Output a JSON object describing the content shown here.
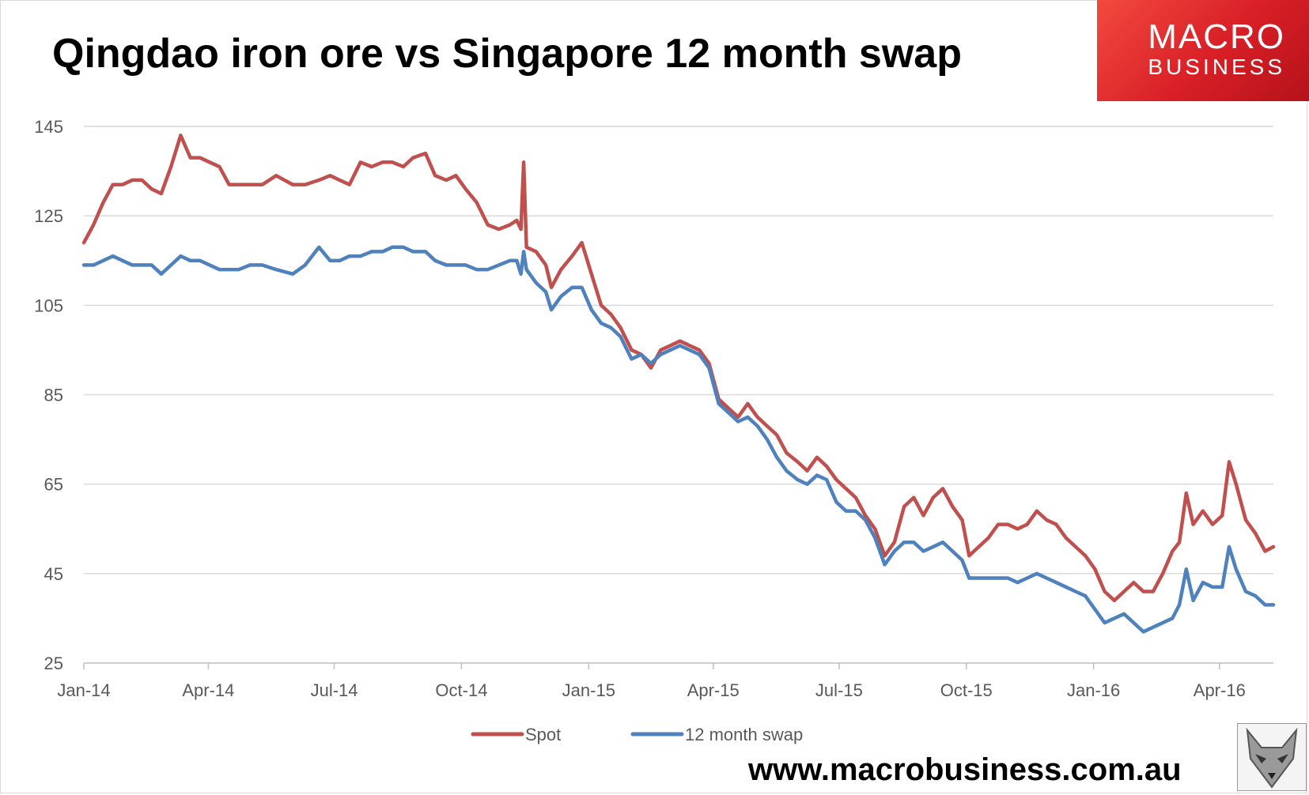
{
  "title": "Qingdao iron ore vs Singapore 12 month swap",
  "logo": {
    "line1": "MACRO",
    "line2": "BUSINESS"
  },
  "url": "www.macrobusiness.com.au",
  "colors": {
    "spot": "#c0504d",
    "swap": "#4f81bd",
    "grid": "#d9d9d9",
    "axis_text": "#595959",
    "logo_red": "#d81f26"
  },
  "chart_data": {
    "type": "line",
    "title": "Qingdao iron ore vs Singapore 12 month swap",
    "xlabel": "",
    "ylabel": "",
    "ylim": [
      25,
      145
    ],
    "yticks": [
      25,
      45,
      65,
      85,
      105,
      125,
      145
    ],
    "x_range": [
      "2014-01-01",
      "2016-05-10"
    ],
    "xticks": [
      {
        "date": "2014-01-01",
        "label": "Jan-14"
      },
      {
        "date": "2014-04-01",
        "label": "Apr-14"
      },
      {
        "date": "2014-07-01",
        "label": "Jul-14"
      },
      {
        "date": "2014-10-01",
        "label": "Oct-14"
      },
      {
        "date": "2015-01-01",
        "label": "Jan-15"
      },
      {
        "date": "2015-04-01",
        "label": "Apr-15"
      },
      {
        "date": "2015-07-01",
        "label": "Jul-15"
      },
      {
        "date": "2015-10-01",
        "label": "Oct-15"
      },
      {
        "date": "2016-01-01",
        "label": "Jan-16"
      },
      {
        "date": "2016-04-01",
        "label": "Apr-16"
      }
    ],
    "grid": true,
    "legend": "bottom",
    "series": [
      {
        "name": "Spot",
        "color": "#c0504d",
        "points": [
          [
            "2014-01-01",
            119
          ],
          [
            "2014-01-08",
            123
          ],
          [
            "2014-01-15",
            128
          ],
          [
            "2014-01-22",
            132
          ],
          [
            "2014-01-29",
            132
          ],
          [
            "2014-02-05",
            133
          ],
          [
            "2014-02-12",
            133
          ],
          [
            "2014-02-19",
            131
          ],
          [
            "2014-02-26",
            130
          ],
          [
            "2014-03-05",
            136
          ],
          [
            "2014-03-12",
            143
          ],
          [
            "2014-03-19",
            138
          ],
          [
            "2014-03-26",
            138
          ],
          [
            "2014-04-02",
            137
          ],
          [
            "2014-04-09",
            136
          ],
          [
            "2014-04-16",
            132
          ],
          [
            "2014-04-23",
            132
          ],
          [
            "2014-05-01",
            132
          ],
          [
            "2014-05-10",
            132
          ],
          [
            "2014-05-20",
            134
          ],
          [
            "2014-06-01",
            132
          ],
          [
            "2014-06-10",
            132
          ],
          [
            "2014-06-20",
            133
          ],
          [
            "2014-06-28",
            134
          ],
          [
            "2014-07-05",
            133
          ],
          [
            "2014-07-12",
            132
          ],
          [
            "2014-07-20",
            137
          ],
          [
            "2014-07-28",
            136
          ],
          [
            "2014-08-05",
            137
          ],
          [
            "2014-08-12",
            137
          ],
          [
            "2014-08-20",
            136
          ],
          [
            "2014-08-27",
            138
          ],
          [
            "2014-09-05",
            139
          ],
          [
            "2014-09-12",
            134
          ],
          [
            "2014-09-20",
            133
          ],
          [
            "2014-09-27",
            134
          ],
          [
            "2014-10-04",
            131
          ],
          [
            "2014-10-12",
            128
          ],
          [
            "2014-10-20",
            123
          ],
          [
            "2014-10-28",
            122
          ],
          [
            "2014-11-05",
            123
          ],
          [
            "2014-11-10",
            124
          ],
          [
            "2014-11-13",
            122
          ],
          [
            "2014-11-15",
            137
          ],
          [
            "2014-11-17",
            118
          ],
          [
            "2014-11-24",
            117
          ],
          [
            "2014-12-01",
            114
          ],
          [
            "2014-12-05",
            109
          ],
          [
            "2014-12-12",
            113
          ],
          [
            "2014-12-20",
            116
          ],
          [
            "2014-12-27",
            119
          ],
          [
            "2015-01-03",
            112
          ],
          [
            "2015-01-10",
            105
          ],
          [
            "2015-01-17",
            103
          ],
          [
            "2015-01-24",
            100
          ],
          [
            "2015-02-01",
            95
          ],
          [
            "2015-02-08",
            94
          ],
          [
            "2015-02-15",
            91
          ],
          [
            "2015-02-22",
            95
          ],
          [
            "2015-03-01",
            96
          ],
          [
            "2015-03-08",
            97
          ],
          [
            "2015-03-15",
            96
          ],
          [
            "2015-03-22",
            95
          ],
          [
            "2015-03-29",
            92
          ],
          [
            "2015-04-05",
            84
          ],
          [
            "2015-04-12",
            82
          ],
          [
            "2015-04-19",
            80
          ],
          [
            "2015-04-26",
            83
          ],
          [
            "2015-05-03",
            80
          ],
          [
            "2015-05-10",
            78
          ],
          [
            "2015-05-17",
            76
          ],
          [
            "2015-05-24",
            72
          ],
          [
            "2015-06-01",
            70
          ],
          [
            "2015-06-08",
            68
          ],
          [
            "2015-06-15",
            71
          ],
          [
            "2015-06-22",
            69
          ],
          [
            "2015-06-29",
            66
          ],
          [
            "2015-07-06",
            64
          ],
          [
            "2015-07-13",
            62
          ],
          [
            "2015-07-20",
            58
          ],
          [
            "2015-07-27",
            55
          ],
          [
            "2015-08-03",
            49
          ],
          [
            "2015-08-10",
            52
          ],
          [
            "2015-08-17",
            60
          ],
          [
            "2015-08-24",
            62
          ],
          [
            "2015-08-31",
            58
          ],
          [
            "2015-09-07",
            62
          ],
          [
            "2015-09-14",
            64
          ],
          [
            "2015-09-21",
            60
          ],
          [
            "2015-09-28",
            57
          ],
          [
            "2015-10-03",
            49
          ],
          [
            "2015-10-10",
            51
          ],
          [
            "2015-10-17",
            53
          ],
          [
            "2015-10-24",
            56
          ],
          [
            "2015-10-31",
            56
          ],
          [
            "2015-11-07",
            55
          ],
          [
            "2015-11-14",
            56
          ],
          [
            "2015-11-21",
            59
          ],
          [
            "2015-11-28",
            57
          ],
          [
            "2015-12-05",
            56
          ],
          [
            "2015-12-12",
            53
          ],
          [
            "2015-12-19",
            51
          ],
          [
            "2015-12-26",
            49
          ],
          [
            "2016-01-02",
            46
          ],
          [
            "2016-01-09",
            41
          ],
          [
            "2016-01-16",
            39
          ],
          [
            "2016-01-23",
            41
          ],
          [
            "2016-01-30",
            43
          ],
          [
            "2016-02-06",
            41
          ],
          [
            "2016-02-13",
            41
          ],
          [
            "2016-02-20",
            45
          ],
          [
            "2016-02-27",
            50
          ],
          [
            "2016-03-03",
            52
          ],
          [
            "2016-03-08",
            63
          ],
          [
            "2016-03-13",
            56
          ],
          [
            "2016-03-20",
            59
          ],
          [
            "2016-03-27",
            56
          ],
          [
            "2016-04-03",
            58
          ],
          [
            "2016-04-08",
            70
          ],
          [
            "2016-04-13",
            65
          ],
          [
            "2016-04-20",
            57
          ],
          [
            "2016-04-27",
            54
          ],
          [
            "2016-05-04",
            50
          ],
          [
            "2016-05-10",
            51
          ]
        ]
      },
      {
        "name": "12 month swap",
        "color": "#4f81bd",
        "points": [
          [
            "2014-01-01",
            114
          ],
          [
            "2014-01-08",
            114
          ],
          [
            "2014-01-15",
            115
          ],
          [
            "2014-01-22",
            116
          ],
          [
            "2014-01-29",
            115
          ],
          [
            "2014-02-05",
            114
          ],
          [
            "2014-02-12",
            114
          ],
          [
            "2014-02-19",
            114
          ],
          [
            "2014-02-26",
            112
          ],
          [
            "2014-03-05",
            114
          ],
          [
            "2014-03-12",
            116
          ],
          [
            "2014-03-19",
            115
          ],
          [
            "2014-03-26",
            115
          ],
          [
            "2014-04-02",
            114
          ],
          [
            "2014-04-09",
            113
          ],
          [
            "2014-04-16",
            113
          ],
          [
            "2014-04-23",
            113
          ],
          [
            "2014-05-01",
            114
          ],
          [
            "2014-05-10",
            114
          ],
          [
            "2014-05-20",
            113
          ],
          [
            "2014-06-01",
            112
          ],
          [
            "2014-06-10",
            114
          ],
          [
            "2014-06-20",
            118
          ],
          [
            "2014-06-28",
            115
          ],
          [
            "2014-07-05",
            115
          ],
          [
            "2014-07-12",
            116
          ],
          [
            "2014-07-20",
            116
          ],
          [
            "2014-07-28",
            117
          ],
          [
            "2014-08-05",
            117
          ],
          [
            "2014-08-12",
            118
          ],
          [
            "2014-08-20",
            118
          ],
          [
            "2014-08-27",
            117
          ],
          [
            "2014-09-05",
            117
          ],
          [
            "2014-09-12",
            115
          ],
          [
            "2014-09-20",
            114
          ],
          [
            "2014-09-27",
            114
          ],
          [
            "2014-10-04",
            114
          ],
          [
            "2014-10-12",
            113
          ],
          [
            "2014-10-20",
            113
          ],
          [
            "2014-10-28",
            114
          ],
          [
            "2014-11-05",
            115
          ],
          [
            "2014-11-10",
            115
          ],
          [
            "2014-11-13",
            112
          ],
          [
            "2014-11-15",
            117
          ],
          [
            "2014-11-17",
            113
          ],
          [
            "2014-11-24",
            110
          ],
          [
            "2014-12-01",
            108
          ],
          [
            "2014-12-05",
            104
          ],
          [
            "2014-12-12",
            107
          ],
          [
            "2014-12-20",
            109
          ],
          [
            "2014-12-27",
            109
          ],
          [
            "2015-01-03",
            104
          ],
          [
            "2015-01-10",
            101
          ],
          [
            "2015-01-17",
            100
          ],
          [
            "2015-01-24",
            98
          ],
          [
            "2015-02-01",
            93
          ],
          [
            "2015-02-08",
            94
          ],
          [
            "2015-02-15",
            92
          ],
          [
            "2015-02-22",
            94
          ],
          [
            "2015-03-01",
            95
          ],
          [
            "2015-03-08",
            96
          ],
          [
            "2015-03-15",
            95
          ],
          [
            "2015-03-22",
            94
          ],
          [
            "2015-03-29",
            91
          ],
          [
            "2015-04-05",
            83
          ],
          [
            "2015-04-12",
            81
          ],
          [
            "2015-04-19",
            79
          ],
          [
            "2015-04-26",
            80
          ],
          [
            "2015-05-03",
            78
          ],
          [
            "2015-05-10",
            75
          ],
          [
            "2015-05-17",
            71
          ],
          [
            "2015-05-24",
            68
          ],
          [
            "2015-06-01",
            66
          ],
          [
            "2015-06-08",
            65
          ],
          [
            "2015-06-15",
            67
          ],
          [
            "2015-06-22",
            66
          ],
          [
            "2015-06-29",
            61
          ],
          [
            "2015-07-06",
            59
          ],
          [
            "2015-07-13",
            59
          ],
          [
            "2015-07-20",
            57
          ],
          [
            "2015-07-27",
            53
          ],
          [
            "2015-08-03",
            47
          ],
          [
            "2015-08-10",
            50
          ],
          [
            "2015-08-17",
            52
          ],
          [
            "2015-08-24",
            52
          ],
          [
            "2015-08-31",
            50
          ],
          [
            "2015-09-07",
            51
          ],
          [
            "2015-09-14",
            52
          ],
          [
            "2015-09-21",
            50
          ],
          [
            "2015-09-28",
            48
          ],
          [
            "2015-10-03",
            44
          ],
          [
            "2015-10-10",
            44
          ],
          [
            "2015-10-17",
            44
          ],
          [
            "2015-10-24",
            44
          ],
          [
            "2015-10-31",
            44
          ],
          [
            "2015-11-07",
            43
          ],
          [
            "2015-11-14",
            44
          ],
          [
            "2015-11-21",
            45
          ],
          [
            "2015-11-28",
            44
          ],
          [
            "2015-12-05",
            43
          ],
          [
            "2015-12-12",
            42
          ],
          [
            "2015-12-19",
            41
          ],
          [
            "2015-12-26",
            40
          ],
          [
            "2016-01-02",
            37
          ],
          [
            "2016-01-09",
            34
          ],
          [
            "2016-01-16",
            35
          ],
          [
            "2016-01-23",
            36
          ],
          [
            "2016-01-30",
            34
          ],
          [
            "2016-02-06",
            32
          ],
          [
            "2016-02-13",
            33
          ],
          [
            "2016-02-20",
            34
          ],
          [
            "2016-02-27",
            35
          ],
          [
            "2016-03-03",
            38
          ],
          [
            "2016-03-08",
            46
          ],
          [
            "2016-03-13",
            39
          ],
          [
            "2016-03-20",
            43
          ],
          [
            "2016-03-27",
            42
          ],
          [
            "2016-04-03",
            42
          ],
          [
            "2016-04-08",
            51
          ],
          [
            "2016-04-13",
            46
          ],
          [
            "2016-04-20",
            41
          ],
          [
            "2016-04-27",
            40
          ],
          [
            "2016-05-04",
            38
          ],
          [
            "2016-05-10",
            38
          ]
        ]
      }
    ]
  }
}
